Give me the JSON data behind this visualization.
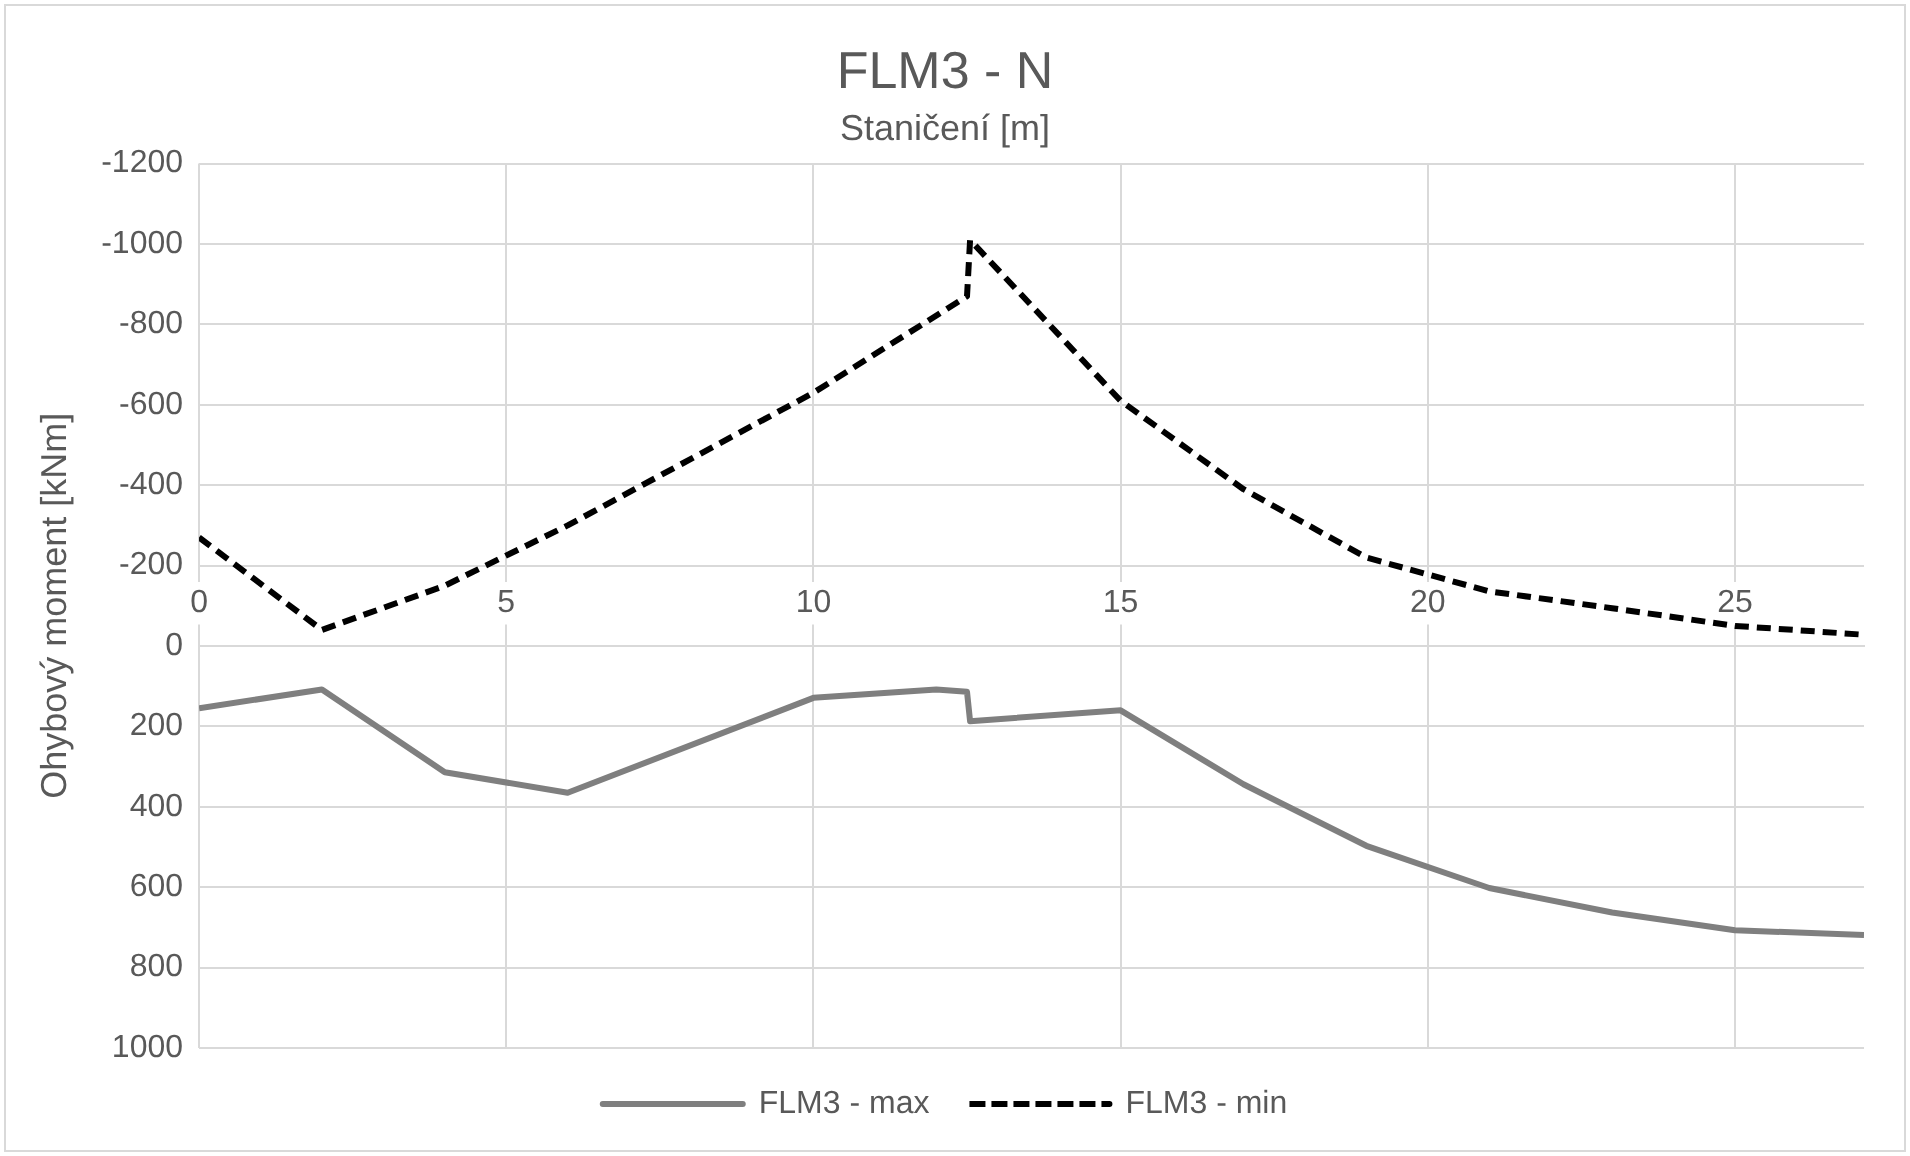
{
  "chart_data": {
    "type": "line",
    "title": "FLM3 - N",
    "xlabel": "Staničení [m]",
    "ylabel": "Ohybový moment [kNm]",
    "xlim": [
      0,
      27.1
    ],
    "xticks": [
      0,
      5,
      10,
      15,
      20,
      25
    ],
    "ylim": [
      1000,
      -1200
    ],
    "yticks": [
      -1200,
      -1000,
      -800,
      -600,
      -400,
      -200,
      0,
      200,
      400,
      600,
      800,
      1000
    ],
    "grid": true,
    "legend": "bottom",
    "marker": "none",
    "series": [
      {
        "name": "FLM3 - max",
        "color": "#7f7f7f",
        "line_style": "solid",
        "x": [
          0,
          2,
          4,
          6,
          10,
          12,
          12.5,
          12.55,
          15,
          17,
          19,
          21,
          23,
          25,
          27.1
        ],
        "values": [
          155,
          108,
          314,
          365,
          129,
          108,
          114,
          187,
          160,
          344,
          497,
          602,
          663,
          707,
          719
        ]
      },
      {
        "name": "FLM3 - min",
        "color": "#000000",
        "line_style": "dashed",
        "x": [
          0,
          2,
          4,
          6,
          10,
          12.5,
          12.55,
          15,
          17,
          19,
          21,
          23,
          25,
          27.1
        ],
        "values": [
          -270,
          -40,
          -150,
          -300,
          -630,
          -870,
          -1010,
          -610,
          -390,
          -220,
          -136,
          -94,
          -50,
          -28
        ]
      }
    ]
  }
}
